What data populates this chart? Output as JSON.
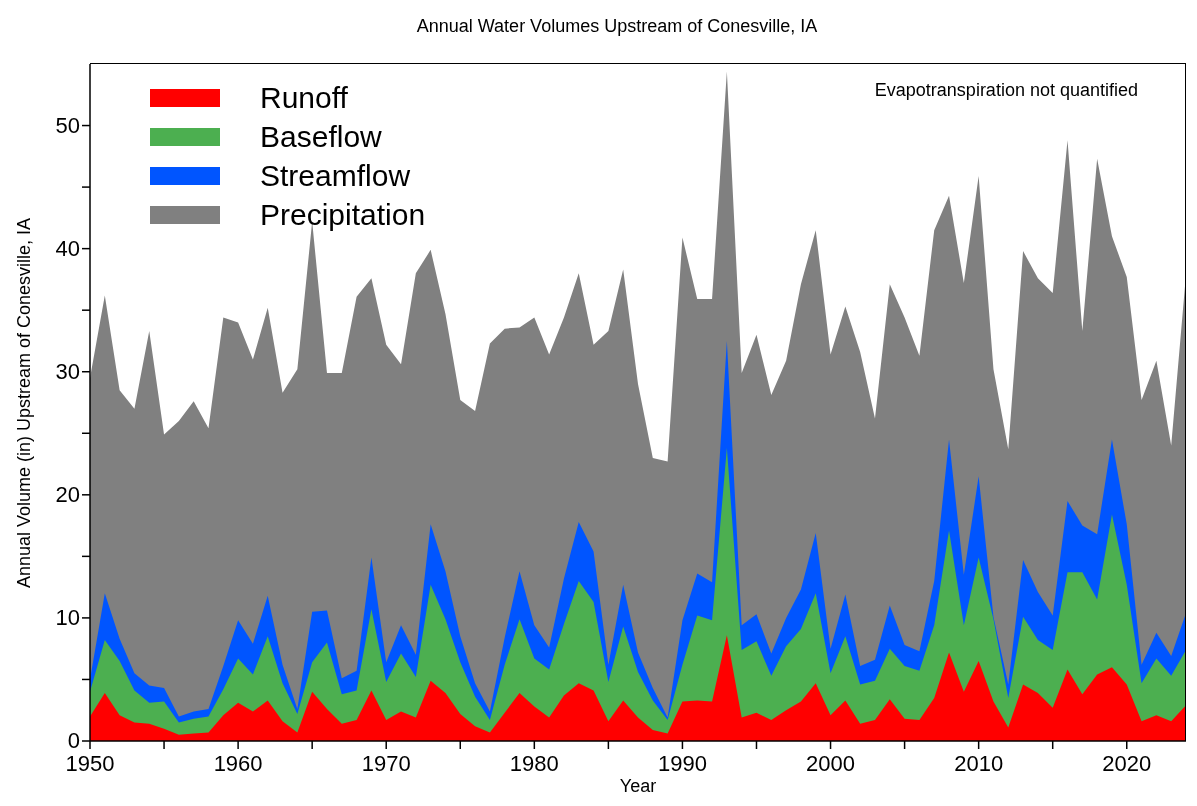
{
  "chart_data": {
    "type": "area",
    "title": "Annual Water Volumes Upstream of Conesville, IA",
    "xlabel": "Year",
    "ylabel": "Annual Volume (in) Upstream of Conesville, IA",
    "annotations": [
      "Evapotranspiration not quantified"
    ],
    "x": [
      1950,
      1951,
      1952,
      1953,
      1954,
      1955,
      1956,
      1957,
      1958,
      1959,
      1960,
      1961,
      1962,
      1963,
      1964,
      1965,
      1966,
      1967,
      1968,
      1969,
      1970,
      1971,
      1972,
      1973,
      1974,
      1975,
      1976,
      1977,
      1978,
      1979,
      1980,
      1981,
      1982,
      1983,
      1984,
      1985,
      1986,
      1987,
      1988,
      1989,
      1990,
      1991,
      1992,
      1993,
      1994,
      1995,
      1996,
      1997,
      1998,
      1999,
      2000,
      2001,
      2002,
      2003,
      2004,
      2005,
      2006,
      2007,
      2008,
      2009,
      2010,
      2011,
      2012,
      2013,
      2014,
      2015,
      2016,
      2017,
      2018,
      2019,
      2020,
      2021,
      2022,
      2023,
      2024
    ],
    "series": [
      {
        "name": "Runoff",
        "color": "#ff0000",
        "values": [
          2.0,
          3.9,
          2.1,
          1.5,
          1.4,
          1.0,
          0.5,
          0.6,
          0.7,
          2.1,
          3.1,
          2.4,
          3.3,
          1.6,
          0.7,
          4.0,
          2.6,
          1.4,
          1.7,
          4.1,
          1.7,
          2.4,
          1.9,
          4.9,
          3.9,
          2.2,
          1.2,
          0.7,
          2.3,
          3.9,
          2.8,
          1.9,
          3.7,
          4.7,
          4.1,
          1.6,
          3.3,
          1.9,
          0.9,
          0.6,
          3.2,
          3.3,
          3.2,
          8.6,
          1.9,
          2.3,
          1.7,
          2.5,
          3.2,
          4.7,
          2.1,
          3.3,
          1.4,
          1.7,
          3.4,
          1.8,
          1.7,
          3.5,
          7.2,
          4.0,
          6.5,
          3.2,
          1.1,
          4.6,
          3.9,
          2.7,
          5.8,
          3.8,
          5.4,
          6.0,
          4.6,
          1.6,
          2.1,
          1.6,
          2.9
        ]
      },
      {
        "name": "Baseflow",
        "color": "#4caf50",
        "values": [
          4.0,
          8.2,
          6.5,
          4.1,
          3.1,
          3.2,
          1.5,
          1.8,
          2.0,
          4.2,
          6.7,
          5.4,
          8.5,
          4.7,
          2.2,
          6.4,
          8.0,
          3.8,
          4.1,
          10.7,
          4.8,
          7.1,
          5.2,
          12.7,
          9.9,
          6.4,
          3.6,
          1.7,
          6.2,
          9.9,
          6.7,
          5.8,
          9.5,
          13.0,
          11.3,
          4.8,
          9.3,
          5.6,
          3.3,
          1.7,
          6.2,
          10.2,
          9.8,
          23.8,
          7.4,
          8.1,
          5.3,
          7.7,
          9.1,
          12.0,
          5.5,
          8.5,
          4.6,
          4.9,
          7.5,
          6.1,
          5.7,
          9.4,
          17.1,
          9.4,
          14.9,
          9.9,
          3.5,
          10.1,
          8.2,
          7.4,
          13.7,
          13.7,
          11.5,
          18.4,
          12.7,
          4.7,
          6.7,
          5.3,
          7.4
        ]
      },
      {
        "name": "Streamflow",
        "color": "#0055ff",
        "values": [
          5.0,
          12.0,
          8.3,
          5.5,
          4.5,
          4.3,
          2.0,
          2.4,
          2.6,
          6.1,
          9.8,
          7.9,
          11.8,
          6.2,
          2.6,
          10.5,
          10.6,
          5.1,
          5.7,
          14.9,
          6.4,
          9.4,
          7.0,
          17.6,
          13.8,
          8.5,
          4.7,
          2.4,
          8.4,
          13.8,
          9.4,
          7.6,
          13.2,
          17.8,
          15.4,
          6.2,
          12.7,
          7.2,
          4.3,
          1.9,
          9.8,
          13.6,
          12.9,
          32.5,
          9.4,
          10.3,
          7.1,
          10.0,
          12.3,
          16.9,
          7.5,
          11.9,
          6.1,
          6.6,
          11.0,
          7.8,
          7.3,
          13.0,
          24.5,
          13.5,
          21.5,
          10.1,
          4.6,
          14.7,
          12.1,
          10.2,
          19.5,
          17.5,
          16.8,
          24.5,
          17.6,
          6.2,
          8.8,
          6.9,
          10.4
        ]
      },
      {
        "name": "Precipitation",
        "color": "#808080",
        "values": [
          29.5,
          36.2,
          28.5,
          27.0,
          33.3,
          24.9,
          26.0,
          27.6,
          25.4,
          34.4,
          34.0,
          31.0,
          35.2,
          28.3,
          30.2,
          42.2,
          29.9,
          29.9,
          36.1,
          37.6,
          32.2,
          30.6,
          38.0,
          39.9,
          34.7,
          27.7,
          26.8,
          32.3,
          33.5,
          33.6,
          34.4,
          31.4,
          34.4,
          38.0,
          32.2,
          33.3,
          38.3,
          29.0,
          23.0,
          22.7,
          40.9,
          35.9,
          35.9,
          54.4,
          29.9,
          33.0,
          28.1,
          30.9,
          37.1,
          41.5,
          31.4,
          35.3,
          31.6,
          26.2,
          37.1,
          34.4,
          31.3,
          41.5,
          44.3,
          37.2,
          45.9,
          30.2,
          23.7,
          39.8,
          37.6,
          36.4,
          48.8,
          33.3,
          47.3,
          41.0,
          37.7,
          27.7,
          30.9,
          24.0,
          37.9
        ]
      }
    ],
    "xlim": [
      1950,
      2024
    ],
    "xticks": [
      1950,
      {
        "value": 1955,
        "label": null
      },
      1960,
      {
        "value": 1965,
        "label": null
      },
      1970,
      {
        "value": 1975,
        "label": null
      },
      1980,
      {
        "value": 1985,
        "label": null
      },
      1990,
      {
        "value": 1995,
        "label": null
      },
      2000,
      {
        "value": 2005,
        "label": null
      },
      2010,
      {
        "value": 2015,
        "label": null
      },
      2020
    ],
    "ylim": [
      0,
      55
    ],
    "yticks": [
      0,
      {
        "value": 5,
        "label": null
      },
      10,
      {
        "value": 15,
        "label": null
      },
      20,
      {
        "value": 25,
        "label": null
      },
      30,
      {
        "value": 35,
        "label": null
      },
      40,
      {
        "value": 45,
        "label": null
      },
      50
    ],
    "grid": false,
    "legend": "top left"
  }
}
